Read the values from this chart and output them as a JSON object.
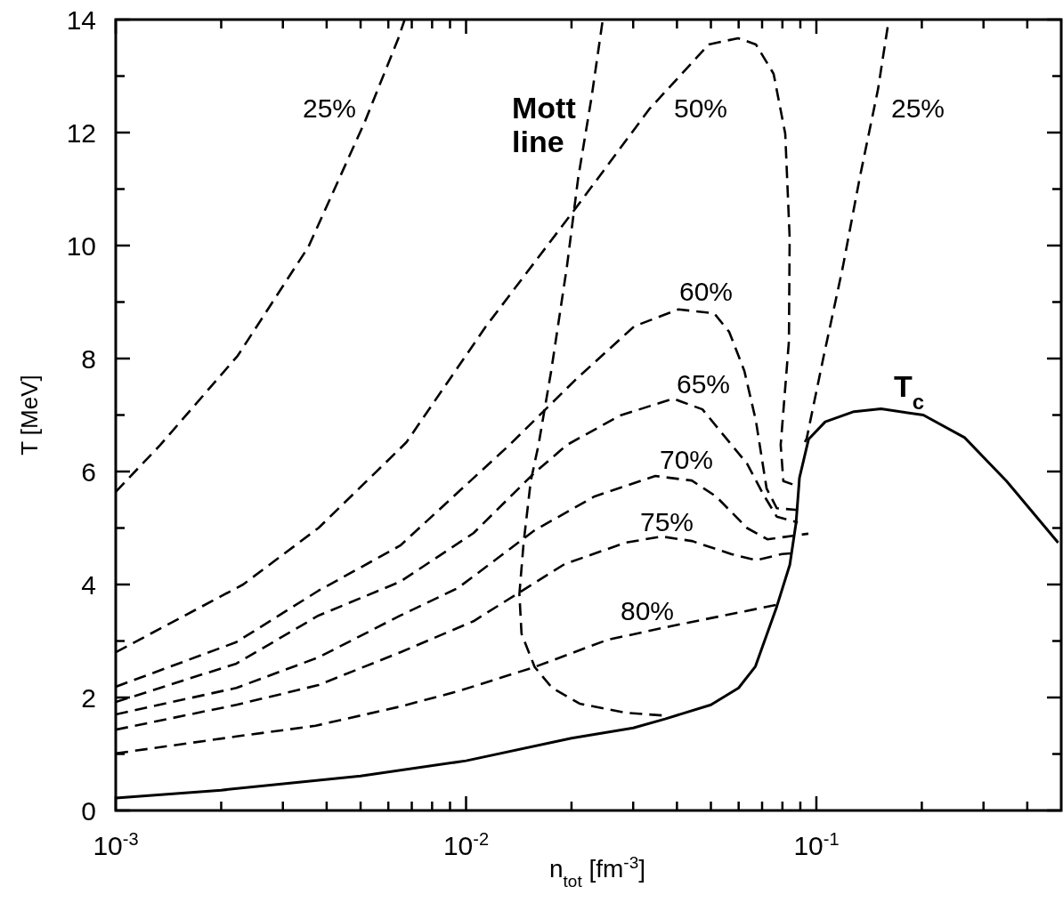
{
  "chart_data": {
    "type": "line",
    "xlabel": "n$_{tot}$ [fm$^{-3}$]",
    "ylabel": "T [MeV]",
    "log": "x",
    "grid": false,
    "marker": "none",
    "xlim": [
      0.001,
      0.5
    ],
    "ylim": [
      0,
      14
    ],
    "xticks": [
      {
        "value": 0.001,
        "label": "10$^{-3}$"
      },
      {
        "value": 0.002,
        "label": null
      },
      {
        "value": 0.003,
        "label": null
      },
      {
        "value": 0.004,
        "label": null
      },
      {
        "value": 0.005,
        "label": null
      },
      {
        "value": 0.006,
        "label": null
      },
      {
        "value": 0.007,
        "label": null
      },
      {
        "value": 0.008,
        "label": null
      },
      {
        "value": 0.009,
        "label": null
      },
      {
        "value": 0.01,
        "label": "10$^{-2}$"
      },
      {
        "value": 0.02,
        "label": null
      },
      {
        "value": 0.03,
        "label": null
      },
      {
        "value": 0.04,
        "label": null
      },
      {
        "value": 0.05,
        "label": null
      },
      {
        "value": 0.06,
        "label": null
      },
      {
        "value": 0.07,
        "label": null
      },
      {
        "value": 0.08,
        "label": null
      },
      {
        "value": 0.09,
        "label": null
      },
      {
        "value": 0.1,
        "label": "10$^{-1}$"
      },
      {
        "value": 0.2,
        "label": null
      },
      {
        "value": 0.3,
        "label": null
      },
      {
        "value": 0.4,
        "label": null
      }
    ],
    "yticks": [
      0,
      {
        "value": 1,
        "label": null
      },
      2,
      {
        "value": 3,
        "label": null
      },
      4,
      {
        "value": 5,
        "label": null
      },
      6,
      {
        "value": 7,
        "label": null
      },
      8,
      {
        "value": 9,
        "label": null
      },
      10,
      {
        "value": 11,
        "label": null
      },
      12,
      {
        "value": 13,
        "label": null
      },
      14
    ],
    "series": [
      {
        "name": "T$_{c}$",
        "color": "#000000",
        "line_style": "solid",
        "x": [
          0.001,
          0.002,
          0.005,
          0.01,
          0.02,
          0.03,
          0.037,
          0.05,
          0.06,
          0.067,
          0.077,
          0.084,
          0.0875,
          0.0895,
          0.095,
          0.106,
          0.128,
          0.153,
          0.202,
          0.265,
          0.349,
          0.49
        ],
        "values": [
          0.22,
          0.36,
          0.61,
          0.88,
          1.28,
          1.46,
          1.62,
          1.87,
          2.17,
          2.55,
          3.6,
          4.35,
          5.09,
          5.89,
          6.57,
          6.88,
          7.06,
          7.11,
          7.0,
          6.6,
          5.83,
          4.74
        ]
      },
      {
        "name": "Mott line",
        "color": "#000000",
        "line_style": "dashed",
        "x": [
          0.0245,
          0.0228,
          0.0209,
          0.0194,
          0.0175,
          0.0161,
          0.0153,
          0.0146,
          0.0142,
          0.0144,
          0.0157,
          0.0176,
          0.0211,
          0.0285,
          0.0368
        ],
        "values": [
          13.95,
          12.61,
          11.2,
          9.62,
          7.78,
          6.47,
          5.83,
          4.74,
          3.83,
          3.13,
          2.54,
          2.17,
          1.89,
          1.73,
          1.68
        ]
      },
      {
        "name": "25%",
        "color": "#000000",
        "line_style": "dashed",
        "x": [
          0.001,
          0.00134,
          0.00223,
          0.00355,
          0.00514,
          0.00641,
          0.00668
        ],
        "values": [
          5.64,
          6.47,
          8.05,
          9.98,
          12.19,
          13.67,
          14
        ]
      },
      {
        "name": "25%",
        "color": "#000000",
        "line_style": "dashed",
        "x": [
          0.0927,
          0.0938,
          0.105,
          0.119,
          0.133,
          0.15,
          0.161
        ],
        "values": [
          6.52,
          6.58,
          8.05,
          9.62,
          11.2,
          12.77,
          14
        ]
      },
      {
        "name": "50%",
        "color": "#000000",
        "line_style": "dashed",
        "x": [
          0.001,
          0.00231,
          0.00379,
          0.00649,
          0.00676,
          0.0114,
          0.0209,
          0.0333,
          0.0493,
          0.0598,
          0.0672,
          0.0755,
          0.0815,
          0.0839,
          0.0835,
          0.0791,
          0.0805,
          0.0895
        ],
        "values": [
          2.8,
          4.0,
          5.0,
          6.41,
          6.52,
          8.57,
          10.72,
          12.41,
          13.56,
          13.67,
          13.56,
          13.04,
          11.98,
          10.14,
          8.31,
          6.47,
          5.83,
          5.73
        ]
      },
      {
        "name": "60%",
        "color": "#000000",
        "line_style": "dashed",
        "x": [
          0.001,
          0.00221,
          0.00379,
          0.00649,
          0.0133,
          0.0205,
          0.0302,
          0.0404,
          0.0511,
          0.0564,
          0.0623,
          0.0672,
          0.0721,
          0.0771,
          0.0885
        ],
        "values": [
          2.19,
          2.98,
          3.89,
          4.69,
          6.47,
          7.62,
          8.57,
          8.87,
          8.8,
          8.47,
          7.78,
          6.9,
          5.7,
          5.35,
          5.32
        ]
      },
      {
        "name": "65%",
        "color": "#000000",
        "line_style": "dashed",
        "x": [
          0.001,
          0.00221,
          0.00379,
          0.00649,
          0.0105,
          0.0157,
          0.0194,
          0.0275,
          0.039,
          0.0473,
          0.0554,
          0.0634,
          0.0705,
          0.0771,
          0.0885
        ],
        "values": [
          1.92,
          2.6,
          3.45,
          4.05,
          4.91,
          5.98,
          6.47,
          6.99,
          7.29,
          7.1,
          6.58,
          6.14,
          5.6,
          5.2,
          5.1
        ]
      },
      {
        "name": "70%",
        "color": "#000000",
        "line_style": "dashed",
        "x": [
          0.001,
          0.00221,
          0.00379,
          0.00649,
          0.00949,
          0.0157,
          0.0233,
          0.0347,
          0.0441,
          0.0517,
          0.0634,
          0.0725,
          0.0949
        ],
        "values": [
          1.7,
          2.17,
          2.71,
          3.45,
          3.94,
          4.96,
          5.56,
          5.92,
          5.84,
          5.56,
          5.0,
          4.8,
          4.9
        ]
      },
      {
        "name": "75%",
        "color": "#000000",
        "line_style": "dashed",
        "x": [
          0.001,
          0.00221,
          0.00379,
          0.00649,
          0.0105,
          0.0191,
          0.0285,
          0.0362,
          0.0441,
          0.0571,
          0.0672,
          0.0799,
          0.0844
        ],
        "values": [
          1.43,
          1.87,
          2.22,
          2.8,
          3.35,
          4.36,
          4.74,
          4.85,
          4.77,
          4.54,
          4.43,
          4.54,
          4.55
        ]
      },
      {
        "name": "80%",
        "color": "#000000",
        "line_style": "dashed",
        "x": [
          0.001,
          0.00221,
          0.00372,
          0.00649,
          0.00949,
          0.0157,
          0.0253,
          0.0383,
          0.0799
        ],
        "values": [
          1.01,
          1.31,
          1.5,
          1.84,
          2.11,
          2.54,
          3.02,
          3.26,
          3.66
        ]
      }
    ]
  }
}
